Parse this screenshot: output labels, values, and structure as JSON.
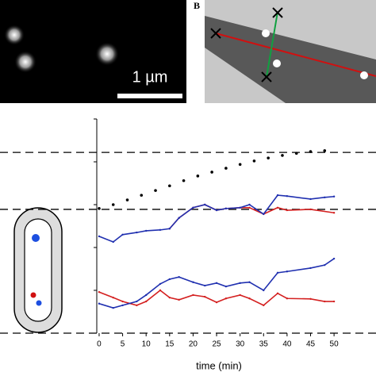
{
  "panels": {
    "scale_label": "1 µm",
    "panel_b_label": "B"
  },
  "chart_data": {
    "type": "line",
    "x_label": "time (min)",
    "xlim": [
      -0.5,
      51.5
    ],
    "xticks": [
      0,
      5,
      10,
      15,
      20,
      25,
      30,
      35,
      40,
      45,
      50
    ],
    "ylim": [
      0,
      5
    ],
    "yticks": [
      0,
      1,
      2,
      3,
      4,
      5
    ],
    "reference_lines": [
      4.22,
      2.89,
      0
    ],
    "series": [
      {
        "color": "#000000",
        "marker_only": true,
        "x": [
          0,
          3,
          6,
          9,
          12,
          15,
          18,
          21,
          24,
          27,
          30,
          33,
          36,
          39,
          42,
          45,
          48
        ],
        "values": [
          2.91,
          3.0,
          3.11,
          3.22,
          3.33,
          3.44,
          3.56,
          3.67,
          3.76,
          3.85,
          3.94,
          4.02,
          4.09,
          4.15,
          4.2,
          4.24,
          4.26
        ]
      },
      {
        "color": "#d42020",
        "marker_only": false,
        "x": [
          15,
          17,
          20,
          22.5,
          25,
          27,
          30,
          32,
          35,
          38,
          40,
          45,
          50
        ],
        "values": [
          2.44,
          2.69,
          2.93,
          3.0,
          2.87,
          2.91,
          2.93,
          2.93,
          2.78,
          2.93,
          2.87,
          2.89,
          2.81
        ]
      },
      {
        "color": "#2030b0",
        "marker_only": false,
        "x": [
          0,
          3,
          5,
          8,
          10,
          13,
          15,
          17,
          20,
          22.5,
          25,
          27,
          30,
          32,
          35,
          38,
          40,
          45,
          48,
          50
        ],
        "values": [
          2.26,
          2.13,
          2.3,
          2.35,
          2.39,
          2.41,
          2.44,
          2.69,
          2.93,
          3.0,
          2.87,
          2.91,
          2.93,
          3.0,
          2.78,
          3.22,
          3.2,
          3.13,
          3.17,
          3.19
        ]
      },
      {
        "color": "#d42020",
        "marker_only": false,
        "x": [
          0,
          3,
          5,
          8,
          10,
          13,
          15,
          17,
          20,
          22.5,
          25,
          27,
          30,
          32,
          35,
          38,
          40,
          45,
          48,
          50
        ],
        "values": [
          0.96,
          0.83,
          0.74,
          0.65,
          0.74,
          1.0,
          0.83,
          0.78,
          0.89,
          0.85,
          0.72,
          0.81,
          0.89,
          0.81,
          0.65,
          0.93,
          0.81,
          0.8,
          0.74,
          0.74
        ]
      },
      {
        "color": "#2030b0",
        "marker_only": false,
        "x": [
          0,
          3,
          5,
          8,
          10,
          13,
          15,
          17,
          20,
          22.5,
          25,
          27,
          30,
          32,
          35,
          38,
          40,
          45,
          48,
          50
        ],
        "values": [
          0.69,
          0.59,
          0.65,
          0.74,
          0.89,
          1.15,
          1.26,
          1.31,
          1.19,
          1.11,
          1.17,
          1.09,
          1.17,
          1.19,
          1.0,
          1.41,
          1.44,
          1.52,
          1.59,
          1.74
        ]
      }
    ]
  }
}
